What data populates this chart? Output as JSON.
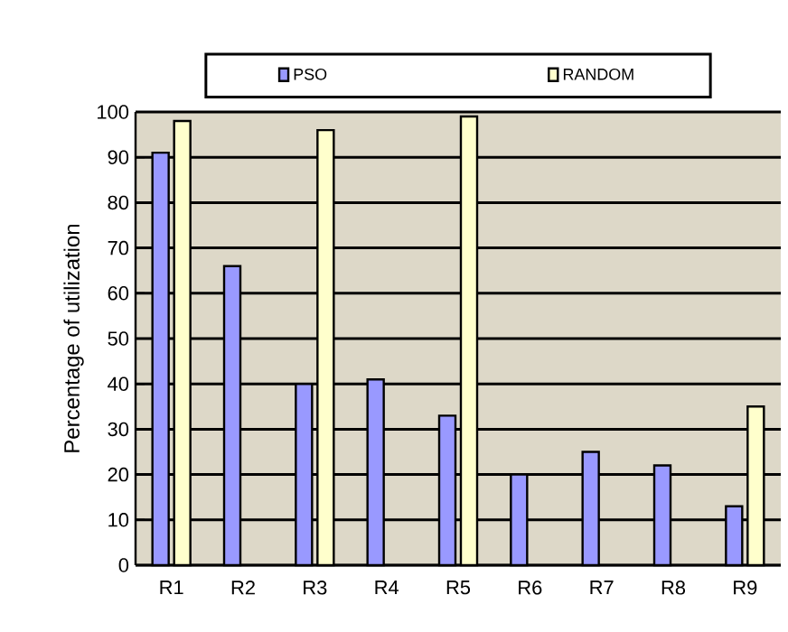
{
  "chart_data": {
    "type": "bar",
    "ylabel": "Percentage of utilization",
    "categories": [
      "R1",
      "R2",
      "R3",
      "R4",
      "R5",
      "R6",
      "R7",
      "R8",
      "R9"
    ],
    "series": [
      {
        "name": "PSO",
        "color": "#9999ff",
        "values": [
          91,
          66,
          40,
          41,
          33,
          20,
          25,
          22,
          13
        ]
      },
      {
        "name": "RANDOM",
        "color": "#ffffcc",
        "values": [
          98,
          null,
          96,
          null,
          99,
          null,
          null,
          null,
          35
        ]
      }
    ],
    "ylim": [
      0,
      100
    ],
    "yticks": [
      0,
      10,
      20,
      30,
      40,
      50,
      60,
      70,
      80,
      90,
      100
    ],
    "grid": "y",
    "legend": "top"
  }
}
